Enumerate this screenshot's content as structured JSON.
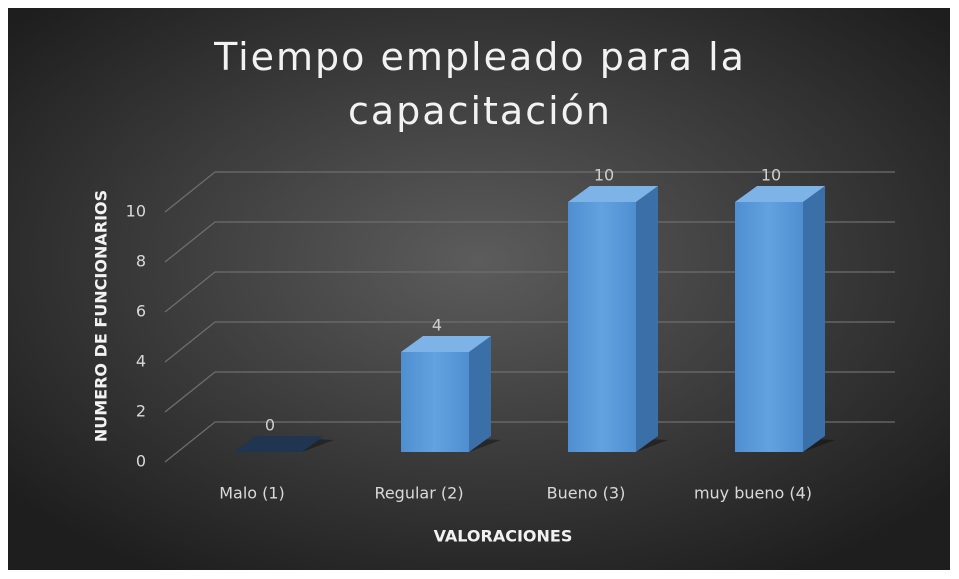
{
  "chart_data": {
    "type": "bar",
    "title": "Tiempo empleado para la capacitación",
    "x_label": "VALORACIONES",
    "y_label": "NUMERO DE FUNCIONARIOS",
    "categories": [
      "Malo (1)",
      "Regular (2)",
      "Bueno (3)",
      "muy bueno (4)"
    ],
    "values": [
      0,
      4,
      10,
      10
    ],
    "color": "#5b9bd5",
    "ylim": [
      0,
      10
    ],
    "yticks": [
      0,
      2,
      4,
      6,
      8,
      10
    ],
    "grid": true
  }
}
